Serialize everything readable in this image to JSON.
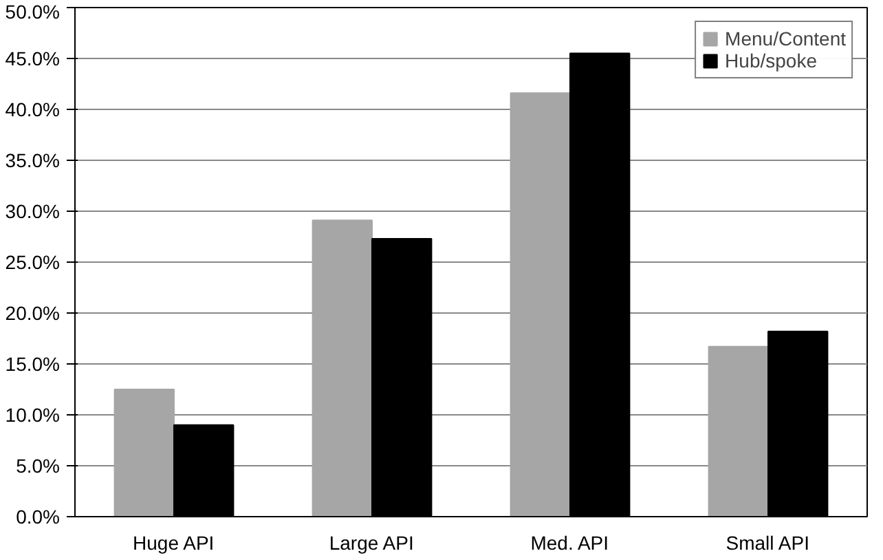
{
  "chart_data": {
    "type": "bar",
    "categories": [
      "Huge API",
      "Large API",
      "Med. API",
      "Small API"
    ],
    "series": [
      {
        "name": "Menu/Content",
        "color": "#a6a6a6",
        "values": [
          12.5,
          29.1,
          41.6,
          16.7
        ]
      },
      {
        "name": "Hub/spoke",
        "color": "#000000",
        "values": [
          9.0,
          27.3,
          45.5,
          18.2
        ]
      }
    ],
    "ylim": [
      0,
      50
    ],
    "yticks": [
      {
        "value": 0,
        "label": "0.0%"
      },
      {
        "value": 5,
        "label": "5.0%"
      },
      {
        "value": 10,
        "label": "10.0%"
      },
      {
        "value": 15,
        "label": "15.0%"
      },
      {
        "value": 20,
        "label": "20.0%"
      },
      {
        "value": 25,
        "label": "25.0%"
      },
      {
        "value": 30,
        "label": "30.0%"
      },
      {
        "value": 35,
        "label": "35.0%"
      },
      {
        "value": 40,
        "label": "40.0%"
      },
      {
        "value": 45,
        "label": "45.0%"
      },
      {
        "value": 50,
        "label": "50.0%"
      }
    ],
    "grid": "y",
    "legend": "top right"
  }
}
